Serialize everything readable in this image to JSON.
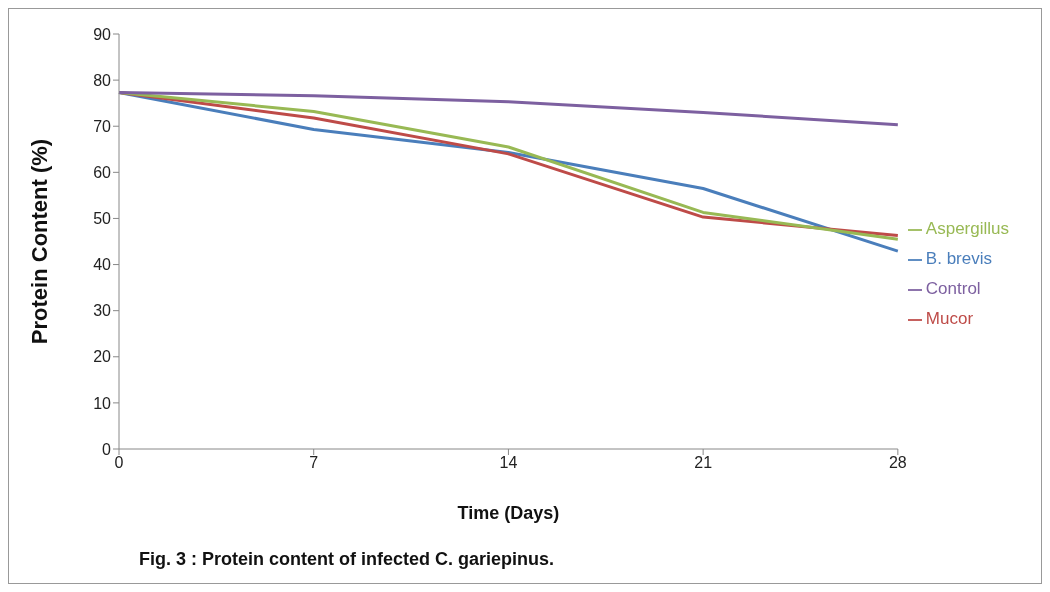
{
  "chart_data": {
    "type": "line",
    "xlabel": "Time  (Days)",
    "ylabel": "Protein Content (%)",
    "categories": [
      "0",
      "7",
      "14",
      "21",
      "28"
    ],
    "series": [
      {
        "name": "B. brevis",
        "color": "#4a7ebb",
        "values": [
          77.3,
          69.3,
          64.3,
          56.5,
          42.9
        ]
      },
      {
        "name": "Mucor",
        "color": "#be4b48",
        "values": [
          77.3,
          71.8,
          64.0,
          50.3,
          46.3
        ]
      },
      {
        "name": "Aspergillus",
        "color": "#98b954",
        "values": [
          77.3,
          73.2,
          65.5,
          51.3,
          45.5
        ]
      },
      {
        "name": "Control",
        "color": "#7d60a0",
        "values": [
          77.3,
          76.6,
          75.3,
          73.0,
          70.3
        ]
      }
    ],
    "ylim": [
      0,
      90
    ],
    "yticks": [
      0,
      10,
      20,
      30,
      40,
      50,
      60,
      70,
      80,
      90
    ],
    "grid": false,
    "legend": "right",
    "marker": "none",
    "line_style": "solid",
    "annotations": [
      "Fig. 3 : Protein content of infected  C. gariepinus."
    ]
  }
}
